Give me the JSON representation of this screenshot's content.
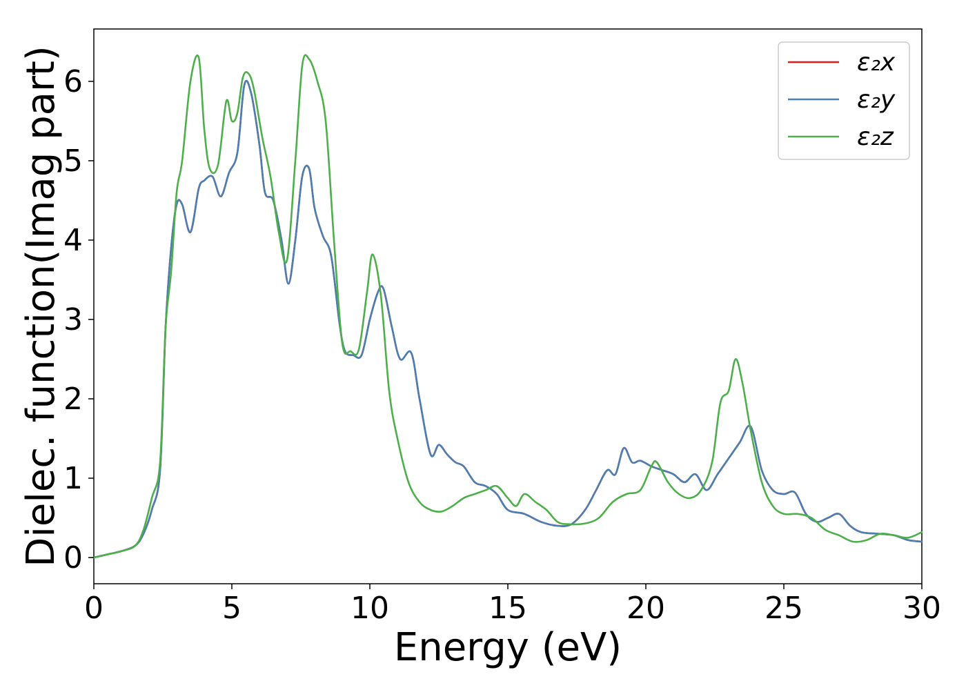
{
  "chart_data": {
    "type": "line",
    "title": "",
    "xlabel": "Energy (eV)",
    "ylabel": "Dielec. function(Imag part)",
    "xlim": [
      0,
      30
    ],
    "ylim": [
      -0.33,
      6.66
    ],
    "xticks": [
      0,
      5,
      10,
      15,
      20,
      25,
      30
    ],
    "yticks": [
      0,
      1,
      2,
      3,
      4,
      5,
      6
    ],
    "xtick_labels": [
      "0",
      "5",
      "10",
      "15",
      "20",
      "25",
      "30"
    ],
    "ytick_labels": [
      "0",
      "1",
      "2",
      "3",
      "4",
      "5",
      "6"
    ],
    "grid": false,
    "legend_position": "top-right",
    "series": [
      {
        "name": "ε₂x",
        "color": "#e41a1c",
        "x": [
          0,
          0.5,
          1,
          1.5,
          1.8,
          2.1,
          2.4,
          2.6,
          2.8,
          3.0,
          3.2,
          3.5,
          3.8,
          4.0,
          4.3,
          4.6,
          4.9,
          5.2,
          5.45,
          5.7,
          6.0,
          6.2,
          6.5,
          6.8,
          7.05,
          7.3,
          7.55,
          7.8,
          8.0,
          8.3,
          8.6,
          8.9,
          9.1,
          9.4,
          9.7,
          10.0,
          10.3,
          10.5,
          10.8,
          11.1,
          11.5,
          11.8,
          12.2,
          12.5,
          12.8,
          13.1,
          13.4,
          13.8,
          14.2,
          14.6,
          15.0,
          15.6,
          16.2,
          16.8,
          17.3,
          17.8,
          18.2,
          18.6,
          18.9,
          19.2,
          19.5,
          19.8,
          20.2,
          20.6,
          21.0,
          21.4,
          21.8,
          22.2,
          22.6,
          23.0,
          23.4,
          23.8,
          24.2,
          24.6,
          25.0,
          25.4,
          25.8,
          26.2,
          26.6,
          27.0,
          27.4,
          27.8,
          28.4,
          29.0,
          29.5,
          30.0
        ],
        "values": [
          0.0,
          0.04,
          0.08,
          0.15,
          0.3,
          0.6,
          1.1,
          2.9,
          3.9,
          4.45,
          4.45,
          4.1,
          4.65,
          4.75,
          4.8,
          4.55,
          4.85,
          5.1,
          5.95,
          5.85,
          5.2,
          4.6,
          4.5,
          4.0,
          3.45,
          4.0,
          4.8,
          4.9,
          4.4,
          4.05,
          3.8,
          2.95,
          2.6,
          2.55,
          2.55,
          3.0,
          3.35,
          3.38,
          2.9,
          2.5,
          2.58,
          2.0,
          1.3,
          1.42,
          1.3,
          1.2,
          1.15,
          0.95,
          0.9,
          0.8,
          0.6,
          0.55,
          0.45,
          0.4,
          0.42,
          0.6,
          0.85,
          1.1,
          1.05,
          1.38,
          1.2,
          1.22,
          1.15,
          1.1,
          1.05,
          0.95,
          1.05,
          0.85,
          1.05,
          1.25,
          1.45,
          1.65,
          1.1,
          0.85,
          0.8,
          0.82,
          0.55,
          0.45,
          0.5,
          0.55,
          0.4,
          0.32,
          0.3,
          0.28,
          0.22,
          0.2
        ]
      },
      {
        "name": "ε₂y",
        "color": "#4a7fb5",
        "x": [
          0,
          0.5,
          1,
          1.5,
          1.8,
          2.1,
          2.4,
          2.6,
          2.8,
          3.0,
          3.2,
          3.5,
          3.8,
          4.0,
          4.3,
          4.6,
          4.9,
          5.2,
          5.45,
          5.7,
          6.0,
          6.2,
          6.5,
          6.8,
          7.05,
          7.3,
          7.55,
          7.8,
          8.0,
          8.3,
          8.6,
          8.9,
          9.1,
          9.4,
          9.7,
          10.0,
          10.3,
          10.5,
          10.8,
          11.1,
          11.5,
          11.8,
          12.2,
          12.5,
          12.8,
          13.1,
          13.4,
          13.8,
          14.2,
          14.6,
          15.0,
          15.6,
          16.2,
          16.8,
          17.3,
          17.8,
          18.2,
          18.6,
          18.9,
          19.2,
          19.5,
          19.8,
          20.2,
          20.6,
          21.0,
          21.4,
          21.8,
          22.2,
          22.6,
          23.0,
          23.4,
          23.8,
          24.2,
          24.6,
          25.0,
          25.4,
          25.8,
          26.2,
          26.6,
          27.0,
          27.4,
          27.8,
          28.4,
          29.0,
          29.5,
          30.0
        ],
        "values": [
          0.0,
          0.04,
          0.08,
          0.15,
          0.3,
          0.6,
          1.1,
          2.9,
          3.9,
          4.45,
          4.45,
          4.1,
          4.65,
          4.75,
          4.8,
          4.55,
          4.85,
          5.1,
          5.95,
          5.85,
          5.2,
          4.6,
          4.5,
          4.0,
          3.45,
          4.0,
          4.8,
          4.9,
          4.4,
          4.05,
          3.8,
          2.95,
          2.6,
          2.55,
          2.55,
          3.0,
          3.35,
          3.38,
          2.9,
          2.5,
          2.58,
          2.0,
          1.3,
          1.42,
          1.3,
          1.2,
          1.15,
          0.95,
          0.9,
          0.8,
          0.6,
          0.55,
          0.45,
          0.4,
          0.42,
          0.6,
          0.85,
          1.1,
          1.05,
          1.38,
          1.2,
          1.22,
          1.15,
          1.1,
          1.05,
          0.95,
          1.05,
          0.85,
          1.05,
          1.25,
          1.45,
          1.65,
          1.1,
          0.85,
          0.8,
          0.82,
          0.55,
          0.45,
          0.5,
          0.55,
          0.4,
          0.32,
          0.3,
          0.28,
          0.22,
          0.2
        ]
      },
      {
        "name": "ε₂z",
        "color": "#4daf4a",
        "x": [
          0,
          0.5,
          1,
          1.5,
          1.8,
          2.1,
          2.4,
          2.6,
          2.8,
          3.0,
          3.2,
          3.5,
          3.8,
          4.0,
          4.2,
          4.5,
          4.8,
          5.0,
          5.2,
          5.4,
          5.6,
          5.8,
          6.1,
          6.4,
          6.7,
          7.0,
          7.3,
          7.55,
          7.8,
          8.1,
          8.4,
          8.7,
          9.0,
          9.3,
          9.6,
          9.9,
          10.1,
          10.4,
          10.7,
          11.0,
          11.4,
          11.8,
          12.2,
          12.6,
          13.0,
          13.4,
          13.8,
          14.2,
          14.6,
          15.0,
          15.3,
          15.6,
          16.0,
          16.4,
          16.8,
          17.2,
          17.8,
          18.3,
          18.8,
          19.3,
          19.8,
          20.2,
          20.4,
          20.8,
          21.2,
          21.6,
          22.0,
          22.4,
          22.7,
          23.0,
          23.25,
          23.5,
          23.8,
          24.2,
          24.6,
          25.0,
          25.5,
          26.0,
          26.5,
          27.0,
          27.5,
          28.0,
          28.5,
          29.0,
          29.5,
          30.0
        ],
        "values": [
          0.0,
          0.04,
          0.08,
          0.15,
          0.35,
          0.75,
          1.2,
          2.9,
          3.6,
          4.6,
          5.0,
          6.0,
          6.3,
          5.4,
          4.9,
          4.95,
          5.75,
          5.5,
          5.6,
          6.05,
          6.1,
          5.9,
          5.3,
          4.8,
          4.1,
          3.75,
          5.0,
          6.2,
          6.28,
          6.0,
          5.5,
          4.0,
          2.7,
          2.6,
          2.62,
          3.35,
          3.82,
          3.3,
          2.1,
          1.5,
          0.95,
          0.7,
          0.6,
          0.58,
          0.65,
          0.75,
          0.8,
          0.85,
          0.9,
          0.75,
          0.65,
          0.8,
          0.7,
          0.6,
          0.45,
          0.42,
          0.43,
          0.5,
          0.7,
          0.8,
          0.85,
          1.15,
          1.2,
          0.95,
          0.8,
          0.75,
          0.85,
          1.2,
          1.95,
          2.1,
          2.5,
          2.2,
          1.6,
          0.95,
          0.65,
          0.55,
          0.55,
          0.5,
          0.35,
          0.28,
          0.2,
          0.22,
          0.3,
          0.28,
          0.25,
          0.32
        ]
      }
    ]
  }
}
